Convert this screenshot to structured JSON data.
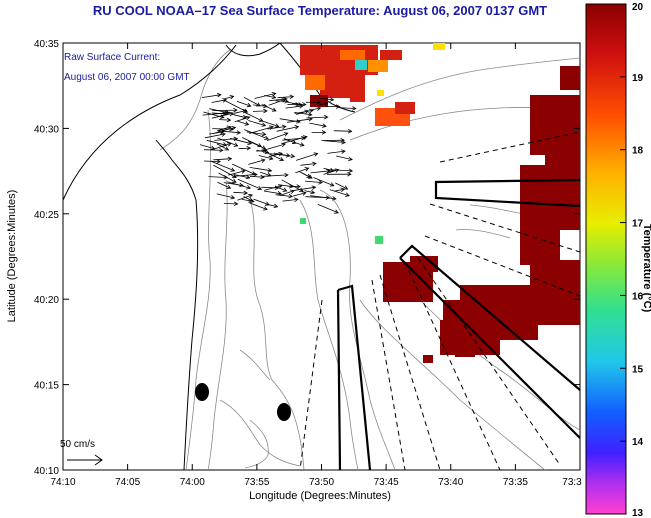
{
  "title": "RU COOL  NOAA–17  Sea Surface Temperature:  August 06, 2007 0137 GMT",
  "annotation": {
    "line1": "Raw Surface Current:",
    "line2": "August 06, 2007 00:00 GMT",
    "color": "#1b1ba0"
  },
  "axes": {
    "xlabel": "Longitude (Degrees:Minutes)",
    "ylabel": "Latitude (Degrees:Minutes)",
    "xticks": [
      "74:10",
      "74:05",
      "74:00",
      "73:55",
      "73:50",
      "73:45",
      "73:40",
      "73:35",
      "73:3"
    ],
    "yticks": [
      "40:35",
      "40:30",
      "40:25",
      "40:20",
      "40:15",
      "40:10"
    ]
  },
  "scale_label": "50 cm/s",
  "colorbar": {
    "title": "Temperature (°C)",
    "ticks": [
      "20",
      "19",
      "18",
      "17",
      "16",
      "15",
      "14",
      "13"
    ],
    "min": 13,
    "max": 20
  },
  "colors": {
    "hot": "#8b0000",
    "warm_red": "#d42010",
    "orange": "#ff6a00",
    "yellow": "#ffe000",
    "green": "#3ed870",
    "cyan": "#30d0c8",
    "axis_text": "#1b1ba0"
  }
}
